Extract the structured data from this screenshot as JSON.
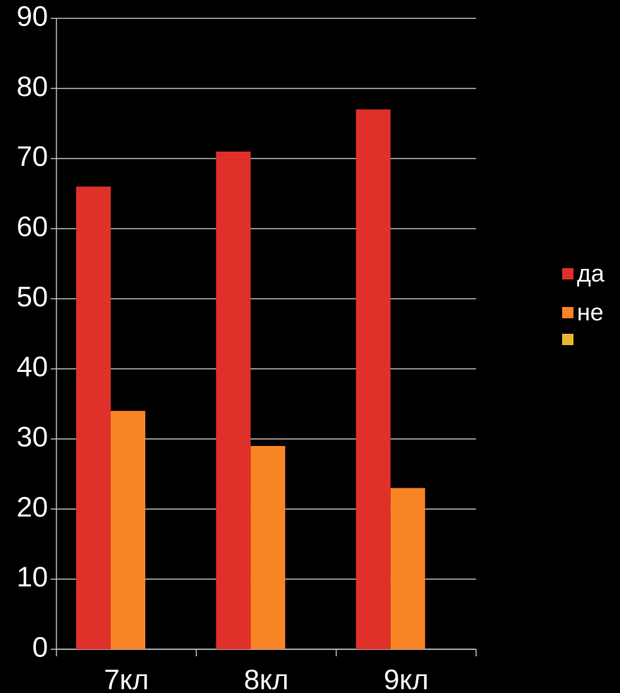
{
  "chart_data": {
    "type": "bar",
    "categories": [
      "7кл",
      "8кл",
      "9кл"
    ],
    "series": [
      {
        "name": "да",
        "color": "#e0302a",
        "values": [
          66,
          71,
          77
        ]
      },
      {
        "name": "не",
        "color": "#f98424",
        "values": [
          34,
          29,
          23
        ]
      },
      {
        "color": "#e8b830",
        "values": [
          null,
          null,
          null
        ]
      }
    ],
    "ylim": [
      0,
      90
    ],
    "yticks": [
      0,
      10,
      20,
      30,
      40,
      50,
      60,
      70,
      80,
      90
    ],
    "grid": true,
    "legend": "right"
  }
}
